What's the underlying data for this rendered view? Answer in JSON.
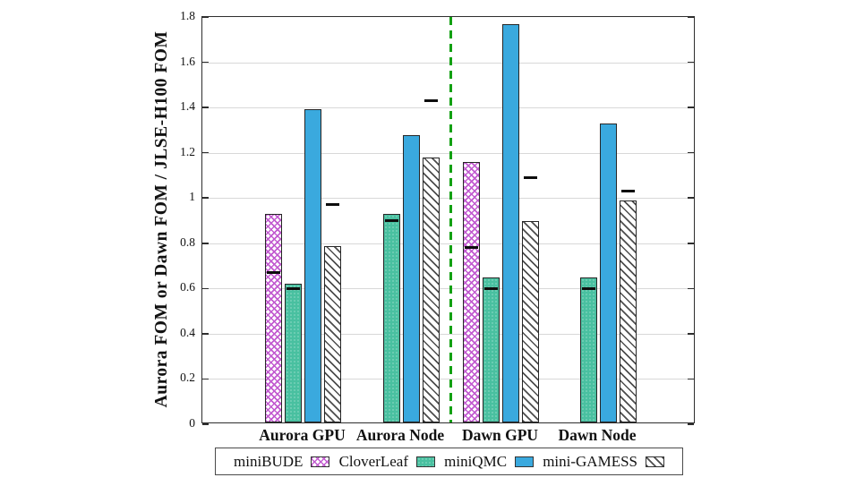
{
  "chart_data": {
    "type": "bar",
    "title": "",
    "xlabel": "",
    "ylabel": "Aurora FOM or Dawn FOM / JLSE-H100 FOM",
    "ylim": [
      0,
      1.8
    ],
    "grid": true,
    "legend_position": "bottom",
    "yticks": [
      {
        "value": 0,
        "label": "0"
      },
      {
        "value": 0.2,
        "label": "0.2"
      },
      {
        "value": 0.4,
        "label": "0.4"
      },
      {
        "value": 0.6,
        "label": "0.6"
      },
      {
        "value": 0.8,
        "label": "0.8"
      },
      {
        "value": 1.0,
        "label": "1"
      },
      {
        "value": 1.2,
        "label": "1.2"
      },
      {
        "value": 1.4,
        "label": "1.4"
      },
      {
        "value": 1.6,
        "label": "1.6"
      },
      {
        "value": 1.8,
        "label": "1.8"
      }
    ],
    "categories": [
      "Aurora GPU",
      "Aurora Node",
      "Dawn GPU",
      "Dawn Node"
    ],
    "series": [
      {
        "name": "miniBUDE",
        "pattern": "magenta-crosshatch",
        "color": "#c25ad0",
        "values": [
          0.92,
          null,
          1.15,
          null
        ],
        "dash_markers": [
          0.67,
          null,
          0.78,
          null
        ]
      },
      {
        "name": "CloverLeaf",
        "pattern": "teal-dotted",
        "color": "#49c0a0",
        "values": [
          0.615,
          0.92,
          0.64,
          0.64
        ],
        "dash_markers": [
          0.6,
          0.9,
          0.6,
          0.6
        ]
      },
      {
        "name": "miniQMC",
        "pattern": "solid-blue",
        "color": "#3aa9de",
        "values": [
          1.385,
          1.27,
          1.76,
          1.32
        ],
        "dash_markers": [
          null,
          null,
          null,
          null
        ]
      },
      {
        "name": "mini-GAMESS",
        "pattern": "gray-diagonal-hatch",
        "color": "#4d4d4d",
        "values": [
          0.78,
          1.17,
          0.89,
          0.98
        ],
        "dash_markers": [
          0.97,
          1.43,
          1.09,
          1.03
        ]
      }
    ],
    "separator_line": {
      "between_categories": [
        "Aurora Node",
        "Dawn GPU"
      ],
      "style": "dashed",
      "color": "#12a012"
    },
    "marker_color": "#0d0d0d",
    "gridline_color": "#d8d8d8",
    "axis_color": "#2e2e2e"
  }
}
